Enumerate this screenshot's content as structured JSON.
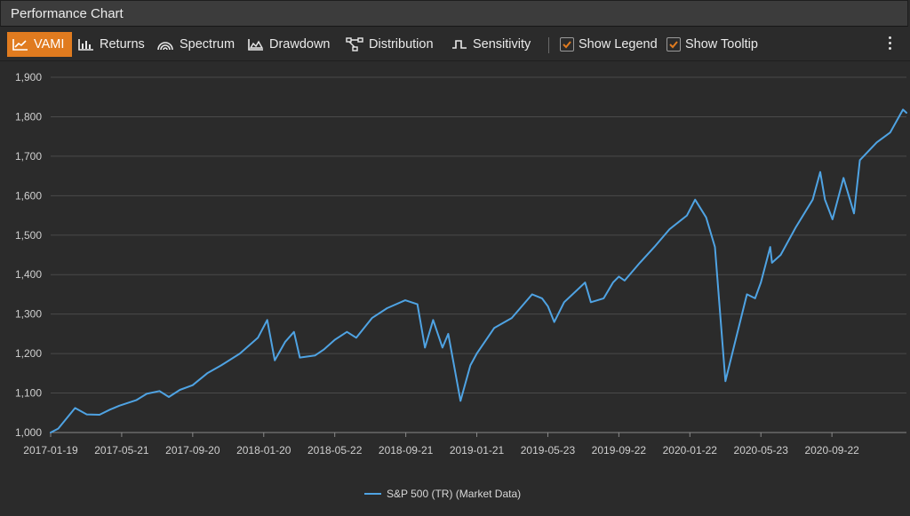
{
  "window": {
    "title": "Performance Chart"
  },
  "toolbar": {
    "tabs": [
      {
        "label": "VAMI",
        "icon": "line-chart-icon",
        "active": true
      },
      {
        "label": "Returns",
        "icon": "bar-chart-icon",
        "active": false
      },
      {
        "label": "Spectrum",
        "icon": "spectrum-icon",
        "active": false
      },
      {
        "label": "Drawdown",
        "icon": "area-chart-icon",
        "active": false
      },
      {
        "label": "Distribution",
        "icon": "distribution-icon",
        "active": false
      },
      {
        "label": "Sensitivity",
        "icon": "step-chart-icon",
        "active": false
      }
    ],
    "checkboxes": [
      {
        "label": "Show Legend",
        "checked": true
      },
      {
        "label": "Show Tooltip",
        "checked": true
      }
    ],
    "more_icon": "more-vertical-icon"
  },
  "colors": {
    "accent": "#e07b1f",
    "series": "#4fa3e3",
    "background": "#2b2b2b",
    "grid": "#4a4a4a"
  },
  "chart_data": {
    "type": "line",
    "ylim": [
      1000,
      1900
    ],
    "yticks": [
      "1,000",
      "1,100",
      "1,200",
      "1,300",
      "1,400",
      "1,500",
      "1,600",
      "1,700",
      "1,800",
      "1,900"
    ],
    "xlim": [
      "2017-01-19",
      "2021-01-28"
    ],
    "xticks": [
      "2017-01-19",
      "2017-05-21",
      "2017-09-20",
      "2018-01-20",
      "2018-05-22",
      "2018-09-21",
      "2019-01-21",
      "2019-05-23",
      "2019-09-22",
      "2020-01-22",
      "2020-05-23",
      "2020-09-22"
    ],
    "grid": true,
    "legend_position": "bottom-center",
    "series": [
      {
        "name": "S&P 500 (TR) (Market Data)",
        "x": [
          "2017-01-19",
          "2017-02-01",
          "2017-02-22",
          "2017-03-02",
          "2017-03-22",
          "2017-04-13",
          "2017-05-01",
          "2017-05-17",
          "2017-06-15",
          "2017-07-03",
          "2017-07-25",
          "2017-08-10",
          "2017-08-29",
          "2017-09-20",
          "2017-10-15",
          "2017-11-08",
          "2017-12-10",
          "2018-01-10",
          "2018-01-26",
          "2018-02-08",
          "2018-02-26",
          "2018-03-13",
          "2018-03-23",
          "2018-04-18",
          "2018-05-03",
          "2018-05-22",
          "2018-06-12",
          "2018-06-28",
          "2018-07-25",
          "2018-08-20",
          "2018-09-20",
          "2018-10-11",
          "2018-10-24",
          "2018-11-07",
          "2018-11-23",
          "2018-12-03",
          "2018-12-24",
          "2019-01-10",
          "2019-01-21",
          "2019-02-20",
          "2019-03-22",
          "2019-04-26",
          "2019-05-13",
          "2019-05-23",
          "2019-06-03",
          "2019-06-20",
          "2019-07-26",
          "2019-08-05",
          "2019-08-27",
          "2019-09-12",
          "2019-09-22",
          "2019-10-02",
          "2019-10-28",
          "2019-11-22",
          "2019-12-18",
          "2020-01-17",
          "2020-01-31",
          "2020-02-19",
          "2020-03-05",
          "2020-03-23",
          "2020-04-08",
          "2020-04-29",
          "2020-05-13",
          "2020-05-23",
          "2020-06-08",
          "2020-06-11",
          "2020-06-26",
          "2020-07-22",
          "2020-08-20",
          "2020-09-02",
          "2020-09-10",
          "2020-09-23",
          "2020-10-12",
          "2020-10-30",
          "2020-11-09",
          "2020-12-08",
          "2020-12-31",
          "2021-01-22",
          "2021-01-28"
        ],
        "values": [
          1000,
          1010,
          1048,
          1062,
          1046,
          1045,
          1058,
          1068,
          1082,
          1098,
          1105,
          1090,
          1108,
          1120,
          1150,
          1170,
          1200,
          1240,
          1285,
          1183,
          1230,
          1255,
          1190,
          1195,
          1210,
          1235,
          1255,
          1240,
          1290,
          1315,
          1335,
          1325,
          1215,
          1285,
          1215,
          1250,
          1080,
          1170,
          1200,
          1265,
          1290,
          1350,
          1340,
          1320,
          1280,
          1330,
          1380,
          1330,
          1340,
          1380,
          1395,
          1385,
          1430,
          1470,
          1515,
          1550,
          1590,
          1545,
          1470,
          1130,
          1225,
          1350,
          1340,
          1380,
          1470,
          1430,
          1450,
          1520,
          1590,
          1660,
          1590,
          1540,
          1645,
          1555,
          1690,
          1735,
          1760,
          1818,
          1810
        ]
      }
    ]
  }
}
